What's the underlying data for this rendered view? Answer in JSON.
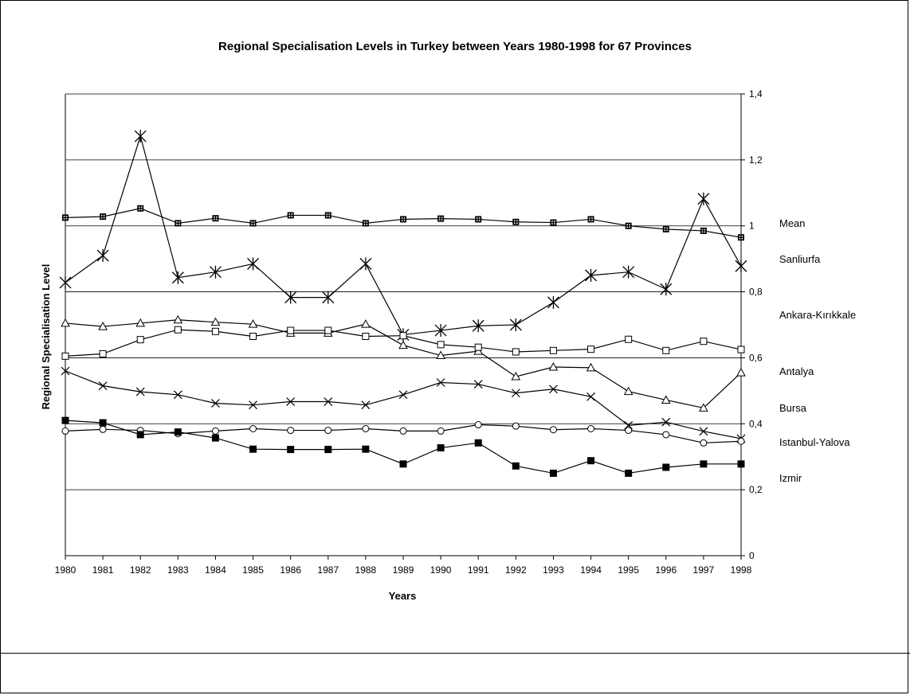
{
  "chart_data": {
    "type": "line",
    "title": "Regional Specialisation Levels in Turkey between Years 1980-1998 for 67 Provinces",
    "xlabel": "Years",
    "ylabel": "Regional Specialisation Level",
    "x": [
      1980,
      1981,
      1982,
      1983,
      1984,
      1985,
      1986,
      1987,
      1988,
      1989,
      1990,
      1991,
      1992,
      1993,
      1994,
      1995,
      1996,
      1997,
      1998
    ],
    "ylim": [
      0,
      1.4
    ],
    "yticks": [
      "0",
      "0,2",
      "0,4",
      "0,6",
      "0,8",
      "1",
      "1,2",
      "1,4"
    ],
    "y_axis_side": "right",
    "grid": "horizontal",
    "legend_placement": "right, labels next to series ends",
    "series": [
      {
        "name": "Mean",
        "marker": "dotted-square",
        "values": [
          1.025,
          1.028,
          1.053,
          1.008,
          1.023,
          1.008,
          1.032,
          1.032,
          1.008,
          1.02,
          1.022,
          1.02,
          1.012,
          1.01,
          1.02,
          1.0,
          0.99,
          0.985,
          0.965
        ]
      },
      {
        "name": "Sanliurfa",
        "marker": "star",
        "values": [
          0.828,
          0.91,
          1.272,
          0.843,
          0.86,
          0.885,
          0.783,
          0.783,
          0.885,
          0.67,
          0.683,
          0.697,
          0.7,
          0.768,
          0.85,
          0.86,
          0.808,
          1.082,
          0.878
        ]
      },
      {
        "name": "Ankara-Kırıkkale",
        "marker": "triangle",
        "values": [
          0.705,
          0.695,
          0.705,
          0.715,
          0.708,
          0.702,
          0.675,
          0.675,
          0.702,
          0.638,
          0.607,
          0.62,
          0.543,
          0.572,
          0.57,
          0.498,
          0.472,
          0.448,
          0.555
        ]
      },
      {
        "name": "Antalya",
        "marker": "square-open",
        "values": [
          0.605,
          0.612,
          0.655,
          0.685,
          0.68,
          0.665,
          0.683,
          0.683,
          0.665,
          0.667,
          0.64,
          0.632,
          0.618,
          0.622,
          0.626,
          0.656,
          0.622,
          0.65,
          0.625
        ]
      },
      {
        "name": "Bursa",
        "marker": "x",
        "values": [
          0.56,
          0.515,
          0.497,
          0.488,
          0.462,
          0.457,
          0.467,
          0.467,
          0.457,
          0.488,
          0.525,
          0.52,
          0.493,
          0.505,
          0.482,
          0.395,
          0.405,
          0.377,
          0.355
        ]
      },
      {
        "name": "Istanbul-Yalova",
        "marker": "circle-open",
        "values": [
          0.378,
          0.383,
          0.38,
          0.37,
          0.378,
          0.385,
          0.38,
          0.38,
          0.385,
          0.378,
          0.378,
          0.397,
          0.393,
          0.382,
          0.385,
          0.38,
          0.367,
          0.342,
          0.347
        ]
      },
      {
        "name": "Izmir",
        "marker": "square-filled",
        "values": [
          0.41,
          0.403,
          0.367,
          0.375,
          0.357,
          0.323,
          0.322,
          0.322,
          0.323,
          0.278,
          0.327,
          0.342,
          0.272,
          0.25,
          0.288,
          0.25,
          0.268,
          0.278,
          0.278
        ]
      }
    ]
  }
}
